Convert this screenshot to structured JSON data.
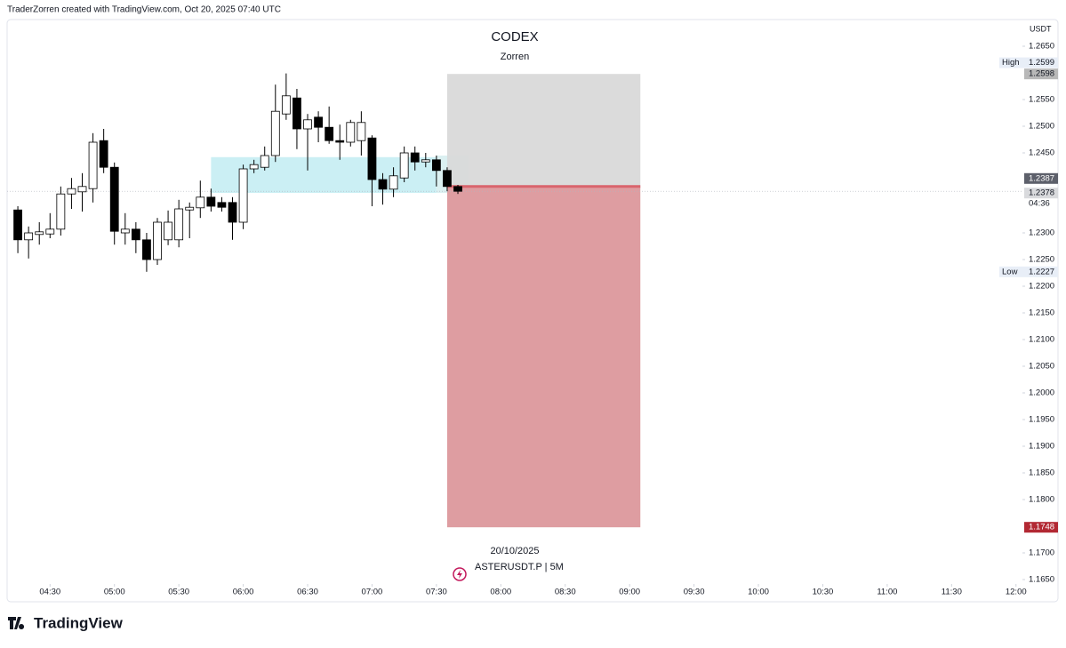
{
  "header": "TraderZorren created with TradingView.com, Oct 20, 2025 07:40 UTC",
  "brand": "TradingView",
  "chart_data": {
    "type": "candlestick",
    "title": "CODEX",
    "subtitle": "Zorren",
    "currency": "USDT",
    "date": "20/10/2025",
    "symbol": "ASTERUSDT.P | 5M",
    "x": [
      "04:15",
      "04:20",
      "04:25",
      "04:30",
      "04:35",
      "04:40",
      "04:45",
      "04:50",
      "04:55",
      "05:00",
      "05:05",
      "05:10",
      "05:15",
      "05:20",
      "05:25",
      "05:30",
      "05:35",
      "05:40",
      "05:45",
      "05:50",
      "05:55",
      "06:00",
      "06:05",
      "06:10",
      "06:15",
      "06:20",
      "06:25",
      "06:30",
      "06:35",
      "06:40",
      "06:45",
      "06:50",
      "06:55",
      "07:00",
      "07:05",
      "07:10",
      "07:15",
      "07:20",
      "07:25",
      "07:30",
      "07:35",
      "07:40"
    ],
    "open": [
      1.2343,
      1.2287,
      1.2297,
      1.2298,
      1.2307,
      1.2373,
      1.2377,
      1.2383,
      1.2473,
      1.2423,
      1.23,
      1.2307,
      1.2287,
      1.225,
      1.2287,
      1.2287,
      1.2343,
      1.2347,
      1.2367,
      1.2357,
      1.2357,
      1.232,
      1.242,
      1.2423,
      1.2445,
      1.2523,
      1.2553,
      1.2495,
      1.2517,
      1.2498,
      1.2473,
      1.247,
      1.2473,
      1.2478,
      1.24,
      1.2382,
      1.2403,
      1.245,
      1.2433,
      1.2437,
      1.2417,
      1.2387
    ],
    "high": [
      1.235,
      1.2312,
      1.232,
      1.2337,
      1.2387,
      1.2403,
      1.2412,
      1.2487,
      1.2495,
      1.2432,
      1.2337,
      1.232,
      1.23,
      1.2328,
      1.2342,
      1.2362,
      1.2357,
      1.2398,
      1.2383,
      1.2367,
      1.2367,
      1.2428,
      1.2437,
      1.2462,
      1.2578,
      1.2599,
      1.257,
      1.2523,
      1.2528,
      1.2537,
      1.2503,
      1.2512,
      1.2528,
      1.2483,
      1.2412,
      1.2423,
      1.2462,
      1.2462,
      1.245,
      1.2445,
      1.2423,
      1.239
    ],
    "low": [
      1.2262,
      1.2252,
      1.2278,
      1.229,
      1.2295,
      1.2345,
      1.234,
      1.2357,
      1.2412,
      1.2278,
      1.2278,
      1.2262,
      1.2227,
      1.224,
      1.2277,
      1.2273,
      1.229,
      1.2328,
      1.234,
      1.234,
      1.2287,
      1.2307,
      1.2412,
      1.2417,
      1.2433,
      1.2512,
      1.2457,
      1.2417,
      1.247,
      1.2467,
      1.2437,
      1.2462,
      1.2445,
      1.235,
      1.2353,
      1.2367,
      1.2395,
      1.2417,
      1.2423,
      1.2387,
      1.2378,
      1.2373
    ],
    "close": [
      1.2287,
      1.23,
      1.2302,
      1.2307,
      1.2373,
      1.2383,
      1.2387,
      1.247,
      1.2423,
      1.2303,
      1.2307,
      1.2287,
      1.225,
      1.232,
      1.232,
      1.2345,
      1.2348,
      1.2367,
      1.235,
      1.2348,
      1.232,
      1.242,
      1.2428,
      1.2445,
      1.2528,
      1.2557,
      1.2495,
      1.2512,
      1.2498,
      1.2473,
      1.247,
      1.2507,
      1.2507,
      1.24,
      1.2382,
      1.2407,
      1.245,
      1.2433,
      1.2437,
      1.2417,
      1.2387,
      1.2378
    ],
    "up_color": "#ffffff",
    "down_color": "#000000",
    "xlim": [
      "04:10",
      "12:03"
    ],
    "xticks": [
      "04:30",
      "05:00",
      "05:30",
      "06:00",
      "06:30",
      "07:00",
      "07:30",
      "08:00",
      "08:30",
      "09:00",
      "09:30",
      "10:00",
      "10:30",
      "11:00",
      "11:30",
      "12:00"
    ],
    "ylim": [
      1.1645,
      1.27
    ],
    "yticks": [
      {
        "value": 1.265,
        "label": "1.2650"
      },
      {
        "value": 1.255,
        "label": "1.2550"
      },
      {
        "value": 1.25,
        "label": "1.2500"
      },
      {
        "value": 1.245,
        "label": "1.2450"
      },
      {
        "value": 1.23,
        "label": "1.2300"
      },
      {
        "value": 1.225,
        "label": "1.2250"
      },
      {
        "value": 1.22,
        "label": "1.2200"
      },
      {
        "value": 1.215,
        "label": "1.2150"
      },
      {
        "value": 1.21,
        "label": "1.2100"
      },
      {
        "value": 1.205,
        "label": "1.2050"
      },
      {
        "value": 1.2,
        "label": "1.2000"
      },
      {
        "value": 1.195,
        "label": "1.1950"
      },
      {
        "value": 1.19,
        "label": "1.1900"
      },
      {
        "value": 1.185,
        "label": "1.1850"
      },
      {
        "value": 1.18,
        "label": "1.1800"
      },
      {
        "value": 1.17,
        "label": "1.1700"
      },
      {
        "value": 1.165,
        "label": "1.1650"
      }
    ],
    "zones": [
      {
        "start": "05:45",
        "end": "07:30",
        "top": 1.2442,
        "bottom": 1.2375,
        "color": "#c5edf3"
      },
      {
        "start": "07:30",
        "end": "07:45",
        "top": 1.2445,
        "bottom": 1.2375,
        "color": "#d7eef0"
      }
    ],
    "position": {
      "start": "07:35",
      "end": "09:05",
      "entry": 1.2387,
      "target": 1.2598,
      "stop": 1.1748,
      "profit_color": "#d9d9d9",
      "loss_color": "#de9da1",
      "entry_color": "#d9646c"
    },
    "high_label": {
      "label": "High",
      "value": 1.2599
    },
    "low_label": {
      "label": "Low",
      "value": 1.2227
    },
    "last_price": 1.2378,
    "countdown": "04:36"
  }
}
